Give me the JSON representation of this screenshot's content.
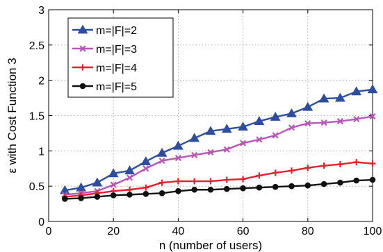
{
  "chart_data": {
    "type": "line",
    "xlabel": "n (number of users)",
    "ylabel": "ε with Cost Function 3",
    "xlim": [
      0,
      100
    ],
    "ylim": [
      0,
      3
    ],
    "xticks": [
      "0",
      "20",
      "40",
      "60",
      "80",
      "100"
    ],
    "yticks": [
      "0",
      "0.5",
      "1",
      "1.5",
      "2",
      "2.5",
      "3"
    ],
    "grid": true,
    "legend_position": "top-left",
    "x": [
      5,
      10,
      15,
      20,
      25,
      30,
      35,
      40,
      45,
      50,
      55,
      60,
      65,
      70,
      75,
      80,
      85,
      90,
      95,
      100
    ],
    "series": [
      {
        "name": "m=|F|=2",
        "color": "#2d4e9e",
        "marker": "triangle",
        "values": [
          0.44,
          0.48,
          0.55,
          0.68,
          0.72,
          0.85,
          0.97,
          1.07,
          1.18,
          1.28,
          1.31,
          1.34,
          1.42,
          1.48,
          1.53,
          1.62,
          1.74,
          1.75,
          1.84,
          1.87
        ]
      },
      {
        "name": "m=|F|=3",
        "color": "#b855b8",
        "marker": "x",
        "values": [
          0.38,
          0.4,
          0.43,
          0.52,
          0.62,
          0.75,
          0.86,
          0.9,
          0.94,
          0.98,
          1.02,
          1.11,
          1.16,
          1.22,
          1.33,
          1.39,
          1.4,
          1.42,
          1.45,
          1.49
        ]
      },
      {
        "name": "m=|F|=4",
        "color": "#e8202a",
        "marker": "plus",
        "values": [
          0.35,
          0.37,
          0.4,
          0.43,
          0.45,
          0.48,
          0.55,
          0.57,
          0.57,
          0.57,
          0.59,
          0.6,
          0.65,
          0.69,
          0.72,
          0.76,
          0.79,
          0.81,
          0.84,
          0.82
        ]
      },
      {
        "name": "m=|F|=5",
        "color": "#111111",
        "marker": "dot",
        "values": [
          0.32,
          0.33,
          0.35,
          0.37,
          0.38,
          0.39,
          0.4,
          0.43,
          0.45,
          0.45,
          0.46,
          0.47,
          0.48,
          0.49,
          0.5,
          0.51,
          0.53,
          0.55,
          0.58,
          0.59
        ]
      }
    ]
  }
}
